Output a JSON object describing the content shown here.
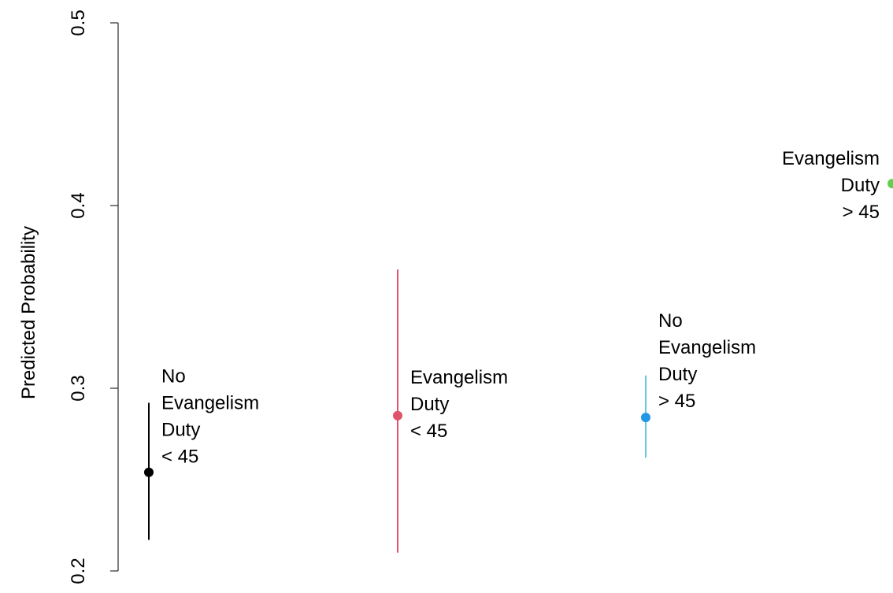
{
  "chart_data": {
    "type": "scatter",
    "ylabel": "Predicted Probability",
    "xlabel": "",
    "ylim": [
      0.2,
      0.5
    ],
    "yticks": [
      0.2,
      0.3,
      0.4,
      0.5
    ],
    "ytick_labels": [
      "0.2",
      "0.3",
      "0.4",
      "0.5"
    ],
    "grid": false,
    "points": [
      {
        "label_lines": [
          "No",
          "Evangelism",
          "Duty",
          "< 45"
        ],
        "estimate": 0.254,
        "lower": 0.217,
        "upper": 0.292,
        "color": "#000000",
        "bar_color": "#000000"
      },
      {
        "label_lines": [
          "Evangelism",
          "Duty",
          "< 45"
        ],
        "estimate": 0.285,
        "lower": 0.21,
        "upper": 0.365,
        "color": "#df536b",
        "bar_color": "#df536b"
      },
      {
        "label_lines": [
          "No",
          "Evangelism",
          "Duty",
          "> 45"
        ],
        "estimate": 0.284,
        "lower": 0.262,
        "upper": 0.307,
        "color": "#2297e6",
        "bar_color": "#61c9e8"
      },
      {
        "label_lines": [
          "Evangelism",
          "Duty",
          "> 45"
        ],
        "estimate": 0.412,
        "lower": null,
        "upper": null,
        "color": "#61d04f",
        "bar_color": "#61d04f"
      }
    ]
  }
}
